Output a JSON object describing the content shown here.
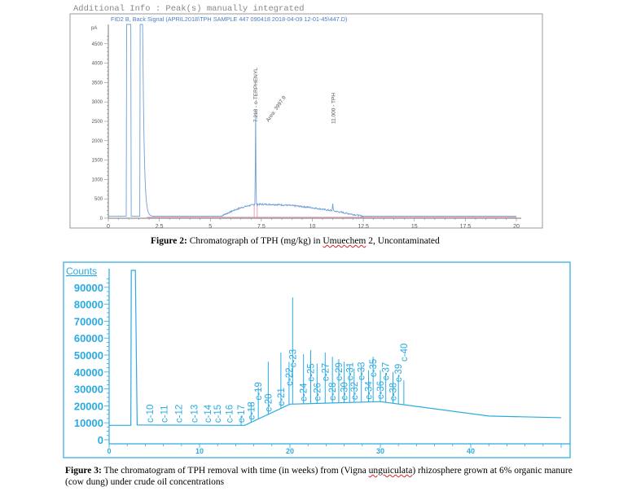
{
  "figure2": {
    "header": "Additional Info : Peak(s) manually integrated",
    "chart_data": {
      "type": "line",
      "title": "FID2 B, Back Signal (APRIL2018\\TPH SAMPLE 447 090418 2018-04-09 12-01-45\\447.D)",
      "ylabel": "pA",
      "xlabel": "",
      "xlim": [
        0,
        20
      ],
      "ylim": [
        0,
        4800
      ],
      "x_ticks": [
        "0",
        "2.5",
        "5",
        "7.5",
        "10",
        "12.5",
        "15",
        "17.5",
        "20"
      ],
      "y_ticks": [
        "0",
        "500",
        "1000",
        "1500",
        "2000",
        "2500",
        "3000",
        "3500",
        "4000",
        "4500"
      ],
      "grid": false,
      "line_color": "#6f9fd8",
      "baseline_color": "#e08aa8",
      "peaks": [
        {
          "rt": 1.0,
          "height": 5000,
          "label": ""
        },
        {
          "rt": 1.6,
          "height": 5000,
          "label": ""
        },
        {
          "rt": 7.218,
          "height": 2450,
          "label": "7.218 - o-TERPHENYL",
          "area": "Area: 3997.9"
        },
        {
          "rt": 11.0,
          "height": 200,
          "label": "11.000 - TPH"
        }
      ],
      "hump": {
        "start": 5.5,
        "peak_rt": 7.5,
        "peak_height": 360,
        "end": 11.5
      }
    },
    "caption_label": "Figure 2:",
    "caption_text": " Chromatograph of TPH (mg/kg) in ",
    "caption_place": "Umuechem",
    "caption_tail": " 2, Uncontaminated"
  },
  "figure3": {
    "chart_data": {
      "type": "line",
      "ylabel": "Counts",
      "xlabel": "",
      "xlim": [
        0,
        50
      ],
      "ylim": [
        0,
        100000
      ],
      "x_ticks": [
        "0",
        "10",
        "20",
        "30",
        "40"
      ],
      "y_ticks": [
        "0",
        "10000",
        "20000",
        "30000",
        "40000",
        "50000",
        "60000",
        "70000",
        "80000",
        "90000"
      ],
      "grid": false,
      "line_color": "#29abe2",
      "baseline": [
        [
          0,
          8500
        ],
        [
          2.4,
          8500
        ],
        [
          2.45,
          100000
        ],
        [
          2.9,
          100000
        ],
        [
          3.1,
          8700
        ],
        [
          15,
          8500
        ],
        [
          20,
          21000
        ],
        [
          30,
          22500
        ],
        [
          42,
          14000
        ],
        [
          50,
          13000
        ]
      ],
      "peaks": [
        {
          "label": "c-10",
          "rt": 4.5,
          "height": 0
        },
        {
          "label": "c-11",
          "rt": 6.1,
          "height": 0
        },
        {
          "label": "c-12",
          "rt": 7.7,
          "height": 0
        },
        {
          "label": "c-13",
          "rt": 9.4,
          "height": 0
        },
        {
          "label": "c-14",
          "rt": 10.9,
          "height": 0
        },
        {
          "label": "c-15",
          "rt": 12.0,
          "height": 0
        },
        {
          "label": "c-16",
          "rt": 13.3,
          "height": 0
        },
        {
          "label": "c-17",
          "rt": 14.6,
          "height": 14000
        },
        {
          "label": "c-18",
          "rt": 15.7,
          "height": 22000
        },
        {
          "label": "c-19",
          "rt": 16.5,
          "height": 31000
        },
        {
          "label": "c-20",
          "rt": 17.6,
          "height": 46000
        },
        {
          "label": "c-21",
          "rt": 19.0,
          "height": 51500
        },
        {
          "label": "c-22",
          "rt": 19.9,
          "height": 46000
        },
        {
          "label": "c-23",
          "rt": 20.3,
          "height": 84000
        },
        {
          "label": "c-24",
          "rt": 21.5,
          "height": 50500
        },
        {
          "label": "c-25",
          "rt": 22.3,
          "height": 53000
        },
        {
          "label": "c-26",
          "rt": 23.0,
          "height": 45000
        },
        {
          "label": "c-27",
          "rt": 23.9,
          "height": 51500
        },
        {
          "label": "c-28",
          "rt": 24.7,
          "height": 49000
        },
        {
          "label": "c-29",
          "rt": 25.4,
          "height": 47500
        },
        {
          "label": "c-30",
          "rt": 26.0,
          "height": 46000
        },
        {
          "label": "c-31",
          "rt": 26.6,
          "height": 44000
        },
        {
          "label": "c-32",
          "rt": 27.1,
          "height": 42000
        },
        {
          "label": "c-33",
          "rt": 27.9,
          "height": 44000
        },
        {
          "label": "c-34",
          "rt": 28.7,
          "height": 41000
        },
        {
          "label": "c-35",
          "rt": 29.2,
          "height": 49000
        },
        {
          "label": "c-36",
          "rt": 30.0,
          "height": 41000
        },
        {
          "label": "c-37",
          "rt": 30.6,
          "height": 39500
        },
        {
          "label": "c-38",
          "rt": 31.4,
          "height": 40000
        },
        {
          "label": "c-39",
          "rt": 32.0,
          "height": 38000
        },
        {
          "label": "c-40",
          "rt": 32.6,
          "height": 35000
        }
      ]
    },
    "caption_label": "Figure 3:",
    "caption_text1": " The chromatogram of TPH removal with time (in weeks) from (Vigna ",
    "caption_species": "unguiculata",
    "caption_text2": ") rhizosphere grown at 6% organic manure",
    "caption_line2": "(cow dung) under crude oil concentrations"
  }
}
